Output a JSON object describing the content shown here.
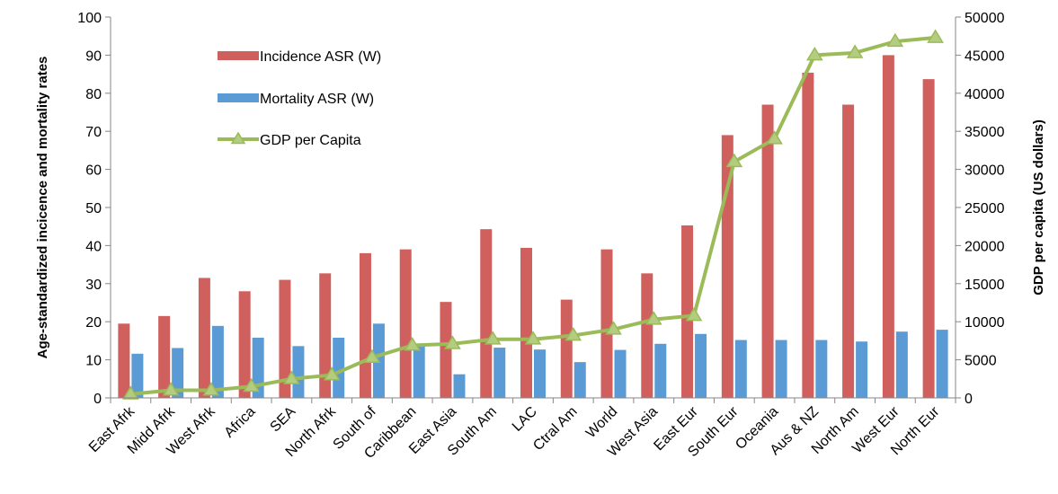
{
  "chart_data": {
    "type": "bar",
    "categories": [
      "East Afrk",
      "Midd Afrk",
      "West Afrk",
      "Africa",
      "SEA",
      "North Afrk",
      "South of",
      "Caribbean",
      "East Asia",
      "South Am",
      "LAC",
      "Ctral Am",
      "World",
      "West Asia",
      "East Eur",
      "South Eur",
      "Oceania",
      "Aus & NZ",
      "North Am",
      "West Eur",
      "North Eur"
    ],
    "series": [
      {
        "name": "Incidence ASR (W)",
        "type": "bar",
        "axis": "left",
        "color": "#D0605E",
        "values": [
          19.5,
          21.5,
          31.5,
          28,
          31,
          32.7,
          38,
          39,
          25.2,
          44.3,
          39.4,
          25.8,
          39,
          32.7,
          45.3,
          69,
          77,
          85.4,
          77,
          90,
          83.7
        ]
      },
      {
        "name": "Mortality ASR (W)",
        "type": "bar",
        "axis": "left",
        "color": "#5B9BD5",
        "values": [
          11.6,
          13.1,
          18.9,
          15.8,
          13.6,
          15.8,
          19.5,
          13.5,
          6.2,
          13.2,
          12.7,
          9.4,
          12.6,
          14.2,
          16.8,
          15.2,
          15.2,
          15.2,
          14.8,
          17.4,
          17.9
        ]
      },
      {
        "name": "GDP per Capita",
        "type": "line",
        "axis": "right",
        "color": "#9BBB59",
        "values": [
          500,
          1000,
          1000,
          1500,
          2500,
          3000,
          5300,
          6900,
          7100,
          7700,
          7700,
          8200,
          9000,
          10300,
          10800,
          31000,
          34000,
          45000,
          45300,
          46800,
          47300
        ]
      }
    ],
    "ylabel": "Age-standardized incicence and mortality rates",
    "y2label": "GDP per capita (US dollars)",
    "ylim": [
      0,
      100
    ],
    "y2lim": [
      0,
      50000
    ],
    "yticks": [
      "0",
      "10",
      "20",
      "30",
      "40",
      "50",
      "60",
      "70",
      "80",
      "90",
      "100"
    ],
    "y2ticks": [
      "0",
      "5000",
      "10000",
      "15000",
      "20000",
      "25000",
      "30000",
      "35000",
      "40000",
      "45000",
      "50000"
    ],
    "legend": "top-left",
    "grid": false
  }
}
